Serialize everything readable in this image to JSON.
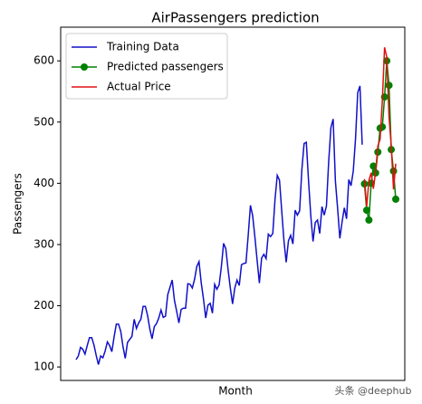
{
  "chart_data": {
    "type": "line",
    "title": "AirPassengers prediction",
    "x_label": "Month",
    "y_label": "Passengers",
    "ylim": [
      78,
      655
    ],
    "yticks": [
      100,
      200,
      300,
      400,
      500,
      600
    ],
    "legend": "upper left",
    "watermark": "头条 @deephub",
    "series": [
      {
        "name": "Training Data",
        "color": "#1010c8",
        "marker": false,
        "values": [
          112,
          118,
          132,
          129,
          121,
          135,
          148,
          148,
          136,
          119,
          104,
          118,
          115,
          126,
          141,
          135,
          125,
          149,
          170,
          170,
          158,
          133,
          114,
          140,
          145,
          150,
          178,
          163,
          172,
          178,
          199,
          199,
          184,
          162,
          146,
          166,
          171,
          180,
          193,
          181,
          183,
          218,
          230,
          242,
          209,
          191,
          172,
          194,
          196,
          196,
          236,
          235,
          229,
          243,
          264,
          272,
          237,
          211,
          180,
          201,
          204,
          188,
          235,
          227,
          234,
          264,
          302,
          293,
          259,
          229,
          203,
          229,
          242,
          233,
          267,
          269,
          270,
          315,
          364,
          347,
          312,
          274,
          237,
          278,
          284,
          277,
          317,
          313,
          318,
          374,
          413,
          405,
          355,
          306,
          271,
          306,
          315,
          301,
          356,
          348,
          355,
          422,
          465,
          467,
          404,
          347,
          305,
          336,
          340,
          318,
          362,
          348,
          363,
          435,
          491,
          505,
          404,
          359,
          310,
          337,
          360,
          342,
          406,
          396,
          420,
          472,
          548,
          559,
          463,
          null,
          null,
          null,
          null,
          null,
          null,
          null,
          null,
          null,
          null,
          null,
          null,
          null,
          null,
          null
        ]
      },
      {
        "name": "Predicted passengers",
        "color": "#008000",
        "marker": true,
        "values": [
          null,
          null,
          null,
          null,
          null,
          null,
          null,
          null,
          null,
          null,
          null,
          null,
          null,
          null,
          null,
          null,
          null,
          null,
          null,
          null,
          null,
          null,
          null,
          null,
          null,
          null,
          null,
          null,
          null,
          null,
          null,
          null,
          null,
          null,
          null,
          null,
          null,
          null,
          null,
          null,
          null,
          null,
          null,
          null,
          null,
          null,
          null,
          null,
          null,
          null,
          null,
          null,
          null,
          null,
          null,
          null,
          null,
          null,
          null,
          null,
          null,
          null,
          null,
          null,
          null,
          null,
          null,
          null,
          null,
          null,
          null,
          null,
          null,
          null,
          null,
          null,
          null,
          null,
          null,
          null,
          null,
          null,
          null,
          null,
          null,
          null,
          null,
          null,
          null,
          null,
          null,
          null,
          null,
          null,
          null,
          null,
          null,
          null,
          null,
          null,
          null,
          null,
          null,
          null,
          null,
          null,
          null,
          null,
          null,
          null,
          null,
          null,
          null,
          null,
          null,
          null,
          null,
          null,
          null,
          null,
          null,
          null,
          null,
          null,
          null,
          null,
          null,
          null,
          null,
          399,
          356,
          340,
          400,
          428,
          417,
          451,
          490,
          492,
          541,
          600,
          560,
          455,
          420,
          374
        ]
      },
      {
        "name": "Actual Price",
        "color": "#e01010",
        "marker": false,
        "values": [
          null,
          null,
          null,
          null,
          null,
          null,
          null,
          null,
          null,
          null,
          null,
          null,
          null,
          null,
          null,
          null,
          null,
          null,
          null,
          null,
          null,
          null,
          null,
          null,
          null,
          null,
          null,
          null,
          null,
          null,
          null,
          null,
          null,
          null,
          null,
          null,
          null,
          null,
          null,
          null,
          null,
          null,
          null,
          null,
          null,
          null,
          null,
          null,
          null,
          null,
          null,
          null,
          null,
          null,
          null,
          null,
          null,
          null,
          null,
          null,
          null,
          null,
          null,
          null,
          null,
          null,
          null,
          null,
          null,
          null,
          null,
          null,
          null,
          null,
          null,
          null,
          null,
          null,
          null,
          null,
          null,
          null,
          null,
          null,
          null,
          null,
          null,
          null,
          null,
          null,
          null,
          null,
          null,
          null,
          null,
          null,
          null,
          null,
          null,
          null,
          null,
          null,
          null,
          null,
          null,
          null,
          null,
          null,
          null,
          null,
          null,
          null,
          null,
          null,
          null,
          null,
          null,
          null,
          null,
          null,
          null,
          null,
          null,
          null,
          null,
          null,
          null,
          null,
          null,
          407,
          362,
          405,
          417,
          391,
          419,
          461,
          472,
          535,
          622,
          606,
          508,
          461,
          390,
          432
        ]
      }
    ]
  }
}
